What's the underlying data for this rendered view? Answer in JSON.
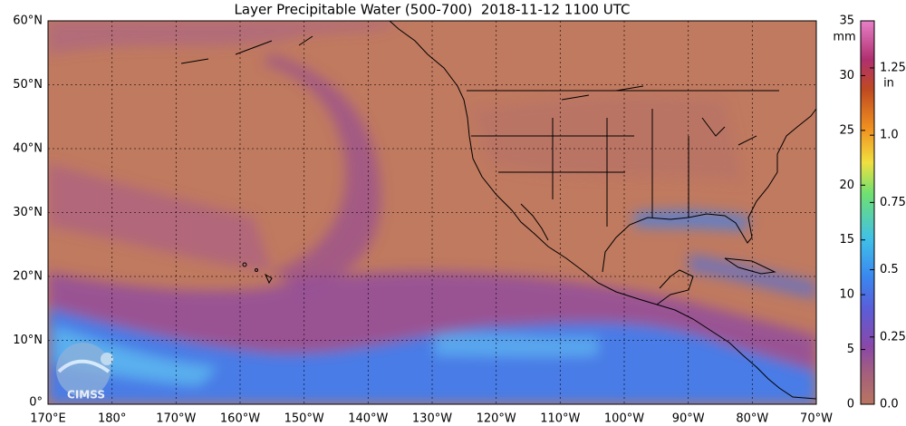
{
  "title": "Layer Precipitable Water (500-700)  2018-11-12 1100 UTC",
  "map": {
    "latlim": [
      0,
      60
    ],
    "lat_ticks": [
      {
        "value": 60,
        "label": "60°N"
      },
      {
        "value": 50,
        "label": "50°N"
      },
      {
        "value": 40,
        "label": "40°N"
      },
      {
        "value": 30,
        "label": "30°N"
      },
      {
        "value": 20,
        "label": "20°N"
      },
      {
        "value": 10,
        "label": "10°N"
      },
      {
        "value": 0,
        "label": "0°"
      }
    ],
    "lonlim": [
      170,
      290
    ],
    "lon_ticks": [
      {
        "value": 170,
        "label": "170°E"
      },
      {
        "value": 180,
        "label": "180°"
      },
      {
        "value": 190,
        "label": "170°W"
      },
      {
        "value": 200,
        "label": "160°W"
      },
      {
        "value": 210,
        "label": "150°W"
      },
      {
        "value": 220,
        "label": "140°W"
      },
      {
        "value": 230,
        "label": "130°W"
      },
      {
        "value": 240,
        "label": "120°W"
      },
      {
        "value": 250,
        "label": "110°W"
      },
      {
        "value": 260,
        "label": "100°W"
      },
      {
        "value": 270,
        "label": "90°W"
      },
      {
        "value": 280,
        "label": "80°W"
      },
      {
        "value": 290,
        "label": "70°W"
      }
    ]
  },
  "colorbar": {
    "mm_label": "mm",
    "mm_lim": [
      0,
      35
    ],
    "mm_ticks": [
      0,
      5,
      10,
      15,
      20,
      25,
      30,
      35
    ],
    "in_label": "in",
    "in_lim": [
      0,
      1.425
    ],
    "in_ticks": [
      {
        "value": 0,
        "label": "0.0"
      },
      0.25,
      0.5,
      0.75,
      {
        "value": 1,
        "label": "1.0"
      },
      1.25
    ]
  },
  "logo": "CIMSS"
}
